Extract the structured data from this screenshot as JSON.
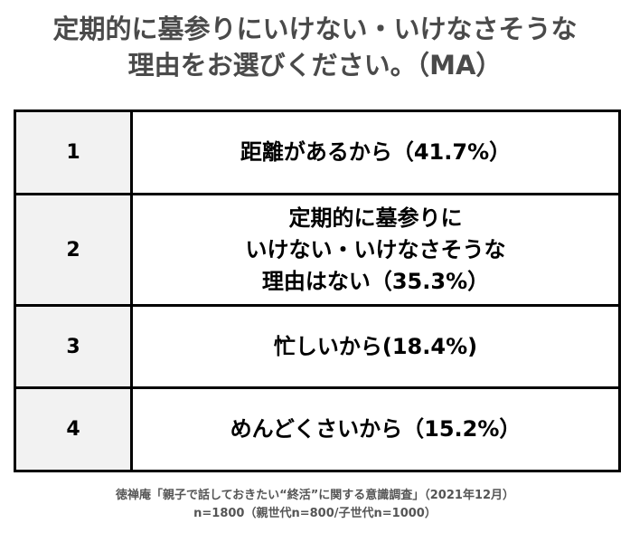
{
  "title": {
    "line1": "定期的に墓参りにいけない・いけなさそうな",
    "line2": "理由をお選びください。（MA）"
  },
  "rows": [
    {
      "rank": "1",
      "lines": [
        "距離があるから（41.7%）"
      ]
    },
    {
      "rank": "2",
      "lines": [
        "定期的に墓参りに",
        "いけない・いけなさそうな",
        "理由はない（35.3%）"
      ]
    },
    {
      "rank": "3",
      "lines": [
        "忙しいから(18.4%)"
      ]
    },
    {
      "rank": "4",
      "lines": [
        "めんどくさいから（15.2%）"
      ]
    }
  ],
  "source": {
    "line1": "徳禅庵「親子で話しておきたい“終活”に関する意識調査」（2021年12月）",
    "line2": "n=1800（親世代n=800/子世代n=1000）"
  },
  "colors": {
    "title_text": "#4a4a4a",
    "rank_cell_bg": "#f2f2f2",
    "border": "#000000",
    "source_text": "#555555"
  }
}
